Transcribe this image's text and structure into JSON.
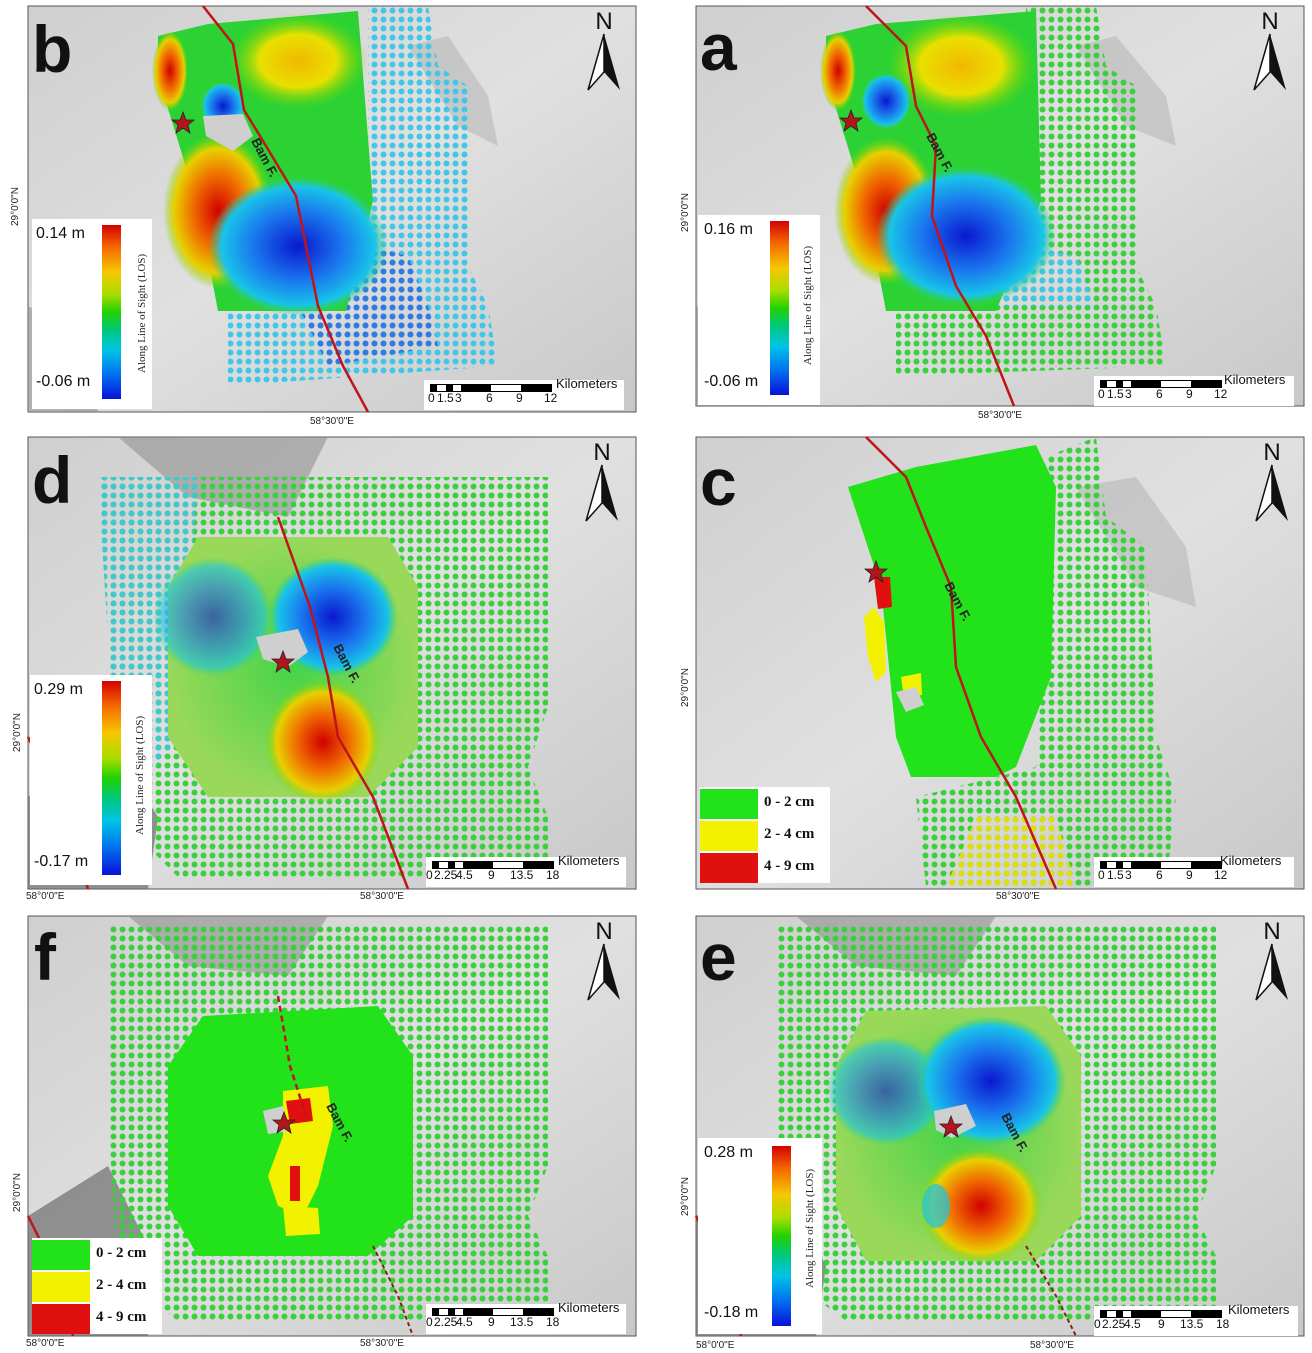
{
  "north_label": "N",
  "fault_label": "Bam F.",
  "scale_unit": "Kilometers",
  "colors": {
    "high": "#d40000",
    "mid": "#22d200",
    "low": "#0a10d8",
    "class_low": "#22e21a",
    "class_mid": "#f2f200",
    "class_high": "#e01010",
    "fault": "#c0141a"
  },
  "panels": [
    {
      "id": "b",
      "letter": "b",
      "kind": "colorbar",
      "colorbar": {
        "max": "0.14 m",
        "min": "-0.06 m",
        "title": "Along Line of Sight (LOS)"
      },
      "scale_ticks": [
        "0",
        "1.5",
        "3",
        "6",
        "9",
        "12"
      ],
      "lon_labels": [
        "58°30'0\"E"
      ],
      "lat_labels": [
        "29°0'0\"N"
      ]
    },
    {
      "id": "a",
      "letter": "a",
      "kind": "colorbar",
      "colorbar": {
        "max": "0.16 m",
        "min": "-0.06 m",
        "title": "Along Line of Sight (LOS)"
      },
      "scale_ticks": [
        "0",
        "1.5",
        "3",
        "6",
        "9",
        "12"
      ],
      "lon_labels": [
        "58°30'0\"E"
      ],
      "lat_labels": [
        "29°0'0\"N"
      ]
    },
    {
      "id": "d",
      "letter": "d",
      "kind": "colorbar",
      "colorbar": {
        "max": "0.29 m",
        "min": "-0.17 m",
        "title": "Along Line of Sight (LOS)"
      },
      "scale_ticks": [
        "0",
        "2.25",
        "4.5",
        "9",
        "13.5",
        "18"
      ],
      "lon_labels": [
        "58°0'0\"E",
        "58°30'0\"E"
      ],
      "lat_labels": [
        "29°0'0\"N"
      ]
    },
    {
      "id": "c",
      "letter": "c",
      "kind": "classes",
      "legend": [
        {
          "label": "0 - 2 cm",
          "color": "#22e21a"
        },
        {
          "label": "2 - 4 cm",
          "color": "#f2f200"
        },
        {
          "label": "4 - 9 cm",
          "color": "#e01010"
        }
      ],
      "scale_ticks": [
        "0",
        "1.5",
        "3",
        "6",
        "9",
        "12"
      ],
      "lon_labels": [
        "58°30'0\"E"
      ],
      "lat_labels": [
        "29°0'0\"N"
      ]
    },
    {
      "id": "f",
      "letter": "f",
      "kind": "classes",
      "legend": [
        {
          "label": "0 - 2 cm",
          "color": "#22e21a"
        },
        {
          "label": "2 - 4 cm",
          "color": "#f2f200"
        },
        {
          "label": "4 - 9 cm",
          "color": "#e01010"
        }
      ],
      "scale_ticks": [
        "0",
        "2.25",
        "4.5",
        "9",
        "13.5",
        "18"
      ],
      "lon_labels": [
        "58°0'0\"E",
        "58°30'0\"E"
      ],
      "lat_labels": [
        "29°0'0\"N"
      ]
    },
    {
      "id": "e",
      "letter": "e",
      "kind": "colorbar",
      "colorbar": {
        "max": "0.28 m",
        "min": "-0.18 m",
        "title": "Along Line of Sight (LOS)"
      },
      "scale_ticks": [
        "0",
        "2.25",
        "4.5",
        "9",
        "13.5",
        "18"
      ],
      "lon_labels": [
        "58°0'0\"E",
        "58°30'0\"E"
      ],
      "lat_labels": [
        "29°0'0\"N"
      ]
    }
  ]
}
